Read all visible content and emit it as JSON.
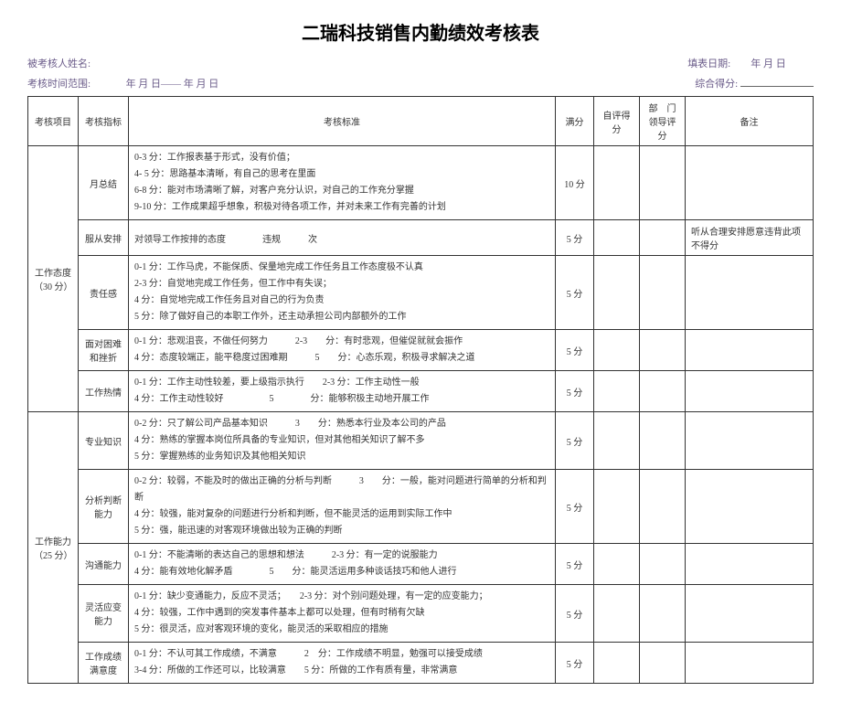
{
  "title": "二瑞科技销售内勤绩效考核表",
  "header": {
    "name_label": "被考核人姓名:",
    "date_label": "填表日期:",
    "date_value": "年 月 日",
    "range_label": "考核时间范围:",
    "range_value": "年 月          日——       年 月 日",
    "total_label": "综合得分:"
  },
  "cols": {
    "category": "考核项目",
    "indicator": "考核指标",
    "standard": "考核标准",
    "full": "满分",
    "self": "自评得分",
    "dept": "部　门领导评分",
    "note": "备注"
  },
  "cat1": {
    "name": "工作态度（30 分）"
  },
  "cat2": {
    "name": "工作能力（25 分）"
  },
  "rows": {
    "r1": {
      "indicator": "月总结",
      "l1": "0-3 分：工作报表基于形式，没有价值；",
      "l2": "4- 5 分：思路基本清晰，有自己的思考在里面",
      "l3": "6-8 分：能对市场清晰了解，对客户充分认识，对自己的工作充分掌握",
      "l4": "9-10 分：工作成果超乎想象，积极对待各项工作，并对未来工作有完善的计划",
      "full": "10 分"
    },
    "r2": {
      "indicator": "服从安排",
      "std": "对领导工作按排的态度　　　　违规　　　次",
      "full": "5 分",
      "note": "听从合理安排愿意违背此项不得分"
    },
    "r3": {
      "indicator": "责任感",
      "l1": "0-1 分：工作马虎，不能保质、保量地完成工作任务且工作态度极不认真",
      "l2": "2-3 分：自觉地完成工作任务，但工作中有失误；",
      "l3": "4 分：自觉地完成工作任务且对自己的行为负责",
      "l4": "5 分：除了做好自己的本职工作外，还主动承担公司内部额外的工作",
      "full": "5 分"
    },
    "r4": {
      "indicator": "面对困难和挫折",
      "l1": "0-1 分：悲观沮丧，不做任何努力　　　2-3　　分：有时悲观，但催促就就会振作",
      "l2": "4 分：态度较端正，能平稳度过困难期　　　5　　分：心态乐观，积极寻求解决之道",
      "full": "5 分"
    },
    "r5": {
      "indicator": "工作热情",
      "l1": "0-1 分：工作主动性较差，要上级指示执行　　2-3 分：工作主动性一般",
      "l2": "4 分：工作主动性较好　　　　　5　　　　分：能够积极主动地开展工作",
      "full": "5 分"
    },
    "r6": {
      "indicator": "专业知识",
      "l1": "0-2 分：只了解公司产品基本知识　　　3　　分：熟悉本行业及本公司的产品",
      "l2": "4 分：熟练的掌握本岗位所具备的专业知识，但对其他相关知识了解不多",
      "l3": "5 分：掌握熟练的业务知识及其他相关知识",
      "full": "5 分"
    },
    "r7": {
      "indicator": "分析判断能力",
      "l1": "0-2 分：较弱，不能及时的做出正确的分析与判断　　　3　　分：一般，能对问题进行简单的分析和判断",
      "l2": "4 分：较强，能对复杂的问题进行分析和判断，但不能灵活的运用到实际工作中",
      "l3": "5 分：强，能迅速的对客观环境做出较为正确的判断",
      "full": "5 分"
    },
    "r8": {
      "indicator": "沟通能力",
      "l1": "0-1 分：不能清晰的表达自己的思想和想法　　　2-3 分：有一定的说服能力",
      "l2": "4 分：能有效地化解矛盾　　　　5　　分：能灵活运用多种谈话技巧和他人进行",
      "full": "5 分"
    },
    "r9": {
      "indicator": "灵活应变能力",
      "l1": "0-1 分：缺少变通能力，反应不灵活；　　2-3 分：对个别问题处理，有一定的应变能力；",
      "l2": "4 分：较强，工作中遇到的突发事件基本上都可以处理，但有时稍有欠缺",
      "l3": "5 分：很灵活，应对客观环境的变化，能灵活的采取相应的措施",
      "full": "5 分"
    },
    "r10": {
      "indicator": "工作成绩满意度",
      "l1": "0-1 分：不认可其工作成绩，不满意　　　2　分：工作成绩不明显，勉强可以接受成绩",
      "l2": "3-4 分：所做的工作还可以，比较满意　　5 分：所做的工作有质有量，非常满意",
      "full": "5 分"
    }
  }
}
